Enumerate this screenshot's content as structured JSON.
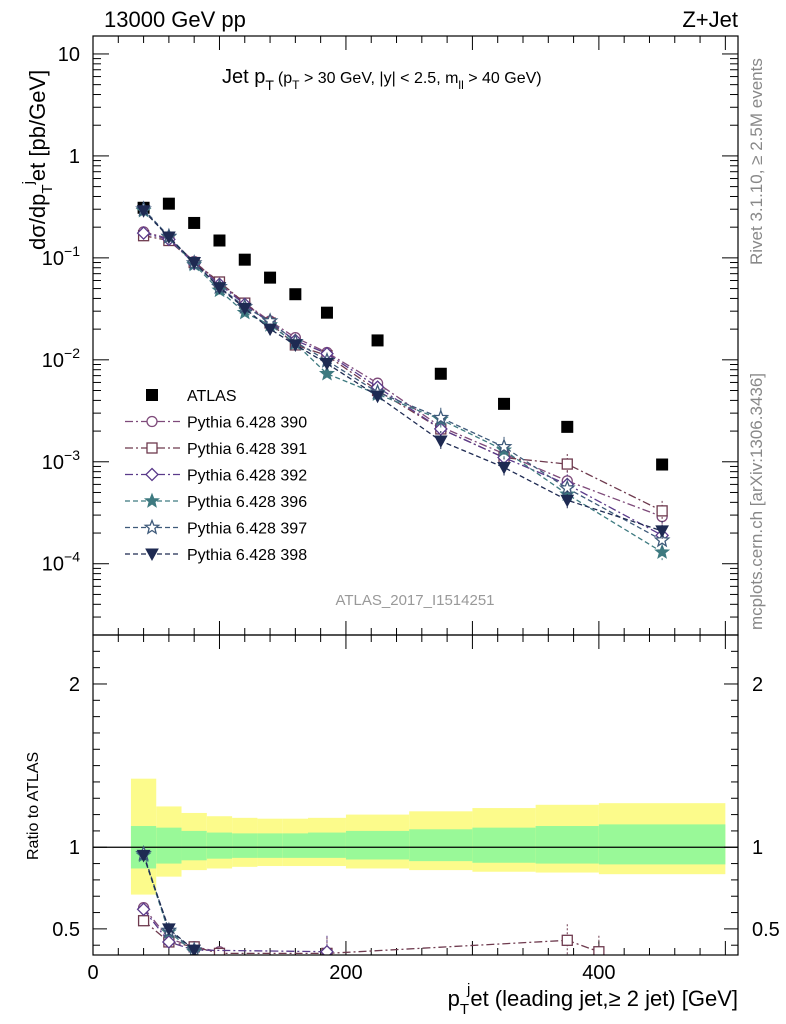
{
  "header": {
    "energy_label": "13000 GeV pp",
    "process_label": "Z+Jet",
    "side_label_top": "Rivet 3.1.10, ≥ 2.5M events",
    "side_label_bottom": "mcplots.cern.ch [arXiv:1306.3436]",
    "analysis_label": "ATLAS_2017_I1514251"
  },
  "chart_data": [
    {
      "type": "scatter",
      "panel": "main",
      "title": {
        "main": "Jet p",
        "main_sub": "T",
        "cuts_1": "(p",
        "cuts_1_sub": "T",
        "cuts_2": " > 30 GeV, |y| < 2.5, m",
        "cuts_2_sub": "ll",
        "cuts_3": " > 40 GeV)"
      },
      "ylabel": {
        "prefix": "dσ/dp",
        "sub": "T",
        "sup": "j",
        "suffix": "et [pb/GeV]"
      },
      "yscale": "log",
      "ylim": [
        2e-05,
        15
      ],
      "xlim": [
        0,
        510
      ],
      "ytick_labels": [
        {
          "value": 10,
          "mantissa": "10",
          "exp": ""
        },
        {
          "value": 1,
          "mantissa": "1",
          "exp": ""
        },
        {
          "value": 0.1,
          "mantissa": "10",
          "exp": "−1"
        },
        {
          "value": 0.01,
          "mantissa": "10",
          "exp": "−2"
        },
        {
          "value": 0.001,
          "mantissa": "10",
          "exp": "−3"
        },
        {
          "value": 0.0001,
          "mantissa": "10",
          "exp": "−4"
        }
      ],
      "legend_position": "middle-left",
      "series": [
        {
          "name": "ATLAS",
          "color": "#000000",
          "marker": "square-filled",
          "dash": "",
          "x": [
            40,
            60,
            80,
            100,
            120,
            140,
            160,
            185,
            225,
            275,
            325,
            375,
            450
          ],
          "y": [
            0.31,
            0.34,
            0.22,
            0.148,
            0.096,
            0.064,
            0.044,
            0.029,
            0.0155,
            0.0073,
            0.0037,
            0.0022,
            0.00094
          ]
        },
        {
          "name": "Pythia 6.428 390",
          "color": "#7e4a7a",
          "marker": "circle-open",
          "dash": "8,3,2,3",
          "x": [
            40,
            60,
            80,
            100,
            120,
            140,
            160,
            185,
            225,
            275,
            325,
            375,
            450
          ],
          "y": [
            0.18,
            0.155,
            0.092,
            0.057,
            0.036,
            0.024,
            0.0165,
            0.0118,
            0.0059,
            0.0022,
            0.0012,
            0.00065,
            0.00029
          ]
        },
        {
          "name": "Pythia 6.428 391",
          "color": "#6e3a4e",
          "marker": "square-open",
          "dash": "8,3,2,3",
          "x": [
            40,
            60,
            80,
            100,
            120,
            140,
            160,
            185,
            225,
            275,
            325,
            375,
            450
          ],
          "y": [
            0.165,
            0.148,
            0.09,
            0.058,
            0.036,
            0.023,
            0.014,
            0.011,
            0.005,
            0.0021,
            0.0011,
            0.00095,
            0.00033
          ]
        },
        {
          "name": "Pythia 6.428 392",
          "color": "#5a3a8a",
          "marker": "diamond-open",
          "dash": "8,3,2,3",
          "x": [
            40,
            60,
            80,
            100,
            120,
            140,
            160,
            185,
            225,
            275,
            325,
            375,
            450
          ],
          "y": [
            0.175,
            0.152,
            0.088,
            0.055,
            0.035,
            0.023,
            0.0155,
            0.0115,
            0.0054,
            0.0021,
            0.0011,
            0.0006,
            0.00019
          ]
        },
        {
          "name": "Pythia 6.428 396",
          "color": "#3e7a80",
          "marker": "star-filled",
          "dash": "5,3",
          "x": [
            40,
            60,
            80,
            100,
            120,
            140,
            160,
            185,
            225,
            275,
            325,
            375,
            450
          ],
          "y": [
            0.29,
            0.16,
            0.086,
            0.048,
            0.029,
            0.022,
            0.0145,
            0.0073,
            0.0046,
            0.0026,
            0.0013,
            0.00048,
            0.00013
          ]
        },
        {
          "name": "Pythia 6.428 397",
          "color": "#3e5a7a",
          "marker": "star-open",
          "dash": "5,3",
          "x": [
            40,
            60,
            80,
            100,
            120,
            140,
            160,
            185,
            225,
            275,
            325,
            375,
            450
          ],
          "y": [
            0.3,
            0.162,
            0.089,
            0.052,
            0.033,
            0.024,
            0.015,
            0.0098,
            0.0048,
            0.0027,
            0.0014,
            0.00055,
            0.00017
          ]
        },
        {
          "name": "Pythia 6.428 398",
          "color": "#1e2a52",
          "marker": "triangle-down-filled",
          "dash": "5,3",
          "x": [
            40,
            60,
            80,
            100,
            120,
            140,
            160,
            185,
            225,
            275,
            325,
            375,
            450
          ],
          "y": [
            0.29,
            0.16,
            0.09,
            0.051,
            0.032,
            0.02,
            0.014,
            0.0092,
            0.0044,
            0.0016,
            0.00088,
            0.00042,
            0.00021
          ]
        }
      ]
    },
    {
      "type": "line",
      "panel": "ratio",
      "ylabel": "Ratio to ATLAS",
      "xlabel": {
        "prefix": "p",
        "sub": "T",
        "sup": "j",
        "suffix": "et (leading jet,≥ 2 jet) [GeV]"
      },
      "xlim": [
        0,
        510
      ],
      "ylim": [
        0.34,
        2.3
      ],
      "xtick_labels": [
        {
          "value": 0,
          "label": "0"
        },
        {
          "value": 200,
          "label": "200"
        },
        {
          "value": 400,
          "label": "400"
        }
      ],
      "ytick_labels": [
        {
          "value": 2,
          "label": "2"
        },
        {
          "value": 1,
          "label": "1"
        },
        {
          "value": 0.5,
          "label": "0.5"
        }
      ],
      "bands": {
        "bin_edges": [
          30,
          50,
          70,
          90,
          110,
          130,
          150,
          170,
          200,
          250,
          300,
          350,
          400,
          500
        ],
        "outer_low": [
          0.71,
          0.82,
          0.86,
          0.87,
          0.88,
          0.885,
          0.885,
          0.885,
          0.87,
          0.86,
          0.85,
          0.845,
          0.835
        ],
        "outer_high": [
          1.42,
          1.25,
          1.21,
          1.19,
          1.18,
          1.175,
          1.175,
          1.18,
          1.2,
          1.22,
          1.24,
          1.26,
          1.27
        ],
        "inner_low": [
          0.87,
          0.9,
          0.92,
          0.93,
          0.935,
          0.935,
          0.935,
          0.935,
          0.925,
          0.915,
          0.905,
          0.9,
          0.895
        ],
        "inner_high": [
          1.13,
          1.12,
          1.1,
          1.09,
          1.085,
          1.085,
          1.085,
          1.09,
          1.1,
          1.11,
          1.12,
          1.13,
          1.14
        ],
        "inner_color": "#99f998",
        "outer_color": "#fcfb8b"
      },
      "series": [
        {
          "name": "Pythia 6.428 390",
          "x": [
            40,
            60,
            80,
            100
          ],
          "y": [
            0.63,
            0.44,
            0.39,
            0.36
          ]
        },
        {
          "name": "Pythia 6.428 391",
          "x": [
            40,
            60,
            80,
            100,
            185,
            375,
            400
          ],
          "y": [
            0.55,
            0.42,
            0.39,
            0.35,
            0.35,
            0.43,
            0.36
          ]
        },
        {
          "name": "Pythia 6.428 392",
          "x": [
            40,
            60,
            80,
            185
          ],
          "y": [
            0.62,
            0.42,
            0.37,
            0.36
          ]
        },
        {
          "name": "Pythia 6.428 396",
          "x": [
            40,
            60,
            80
          ],
          "y": [
            0.95,
            0.48,
            0.36
          ]
        },
        {
          "name": "Pythia 6.428 397",
          "x": [
            40,
            60,
            80
          ],
          "y": [
            0.96,
            0.49,
            0.37
          ]
        },
        {
          "name": "Pythia 6.428 398",
          "x": [
            40,
            60,
            80
          ],
          "y": [
            0.95,
            0.5,
            0.37
          ]
        }
      ]
    }
  ]
}
